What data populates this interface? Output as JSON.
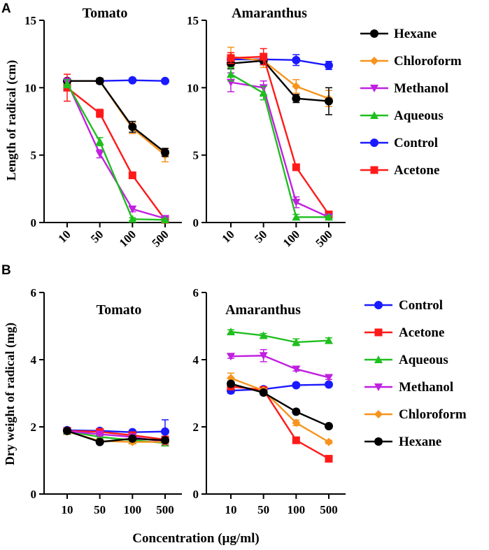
{
  "figure": {
    "panel_a_label": "A",
    "panel_b_label": "B",
    "ylabel_a": "Length of radical (cm)",
    "ylabel_b": "Dry weight of radical (mg)",
    "xlabel": "Concentration (µg/ml)"
  },
  "colors": {
    "Hexane": "#000000",
    "Chloroform": "#f7941d",
    "Methanol": "#c020e0",
    "Aqueous": "#1fbf1f",
    "Control": "#1a1aff",
    "Acetone": "#ff1a1a"
  },
  "legend_a": [
    "Hexane",
    "Chloroform",
    "Methanol",
    "Aqueous",
    "Control",
    "Acetone"
  ],
  "legend_b": [
    "Control",
    "Acetone",
    "Aqueous",
    "Methanol",
    "Chloroform",
    "Hexane"
  ],
  "chart_data": [
    {
      "type": "line",
      "title": "Tomato",
      "panel": "A",
      "categories": [
        "10",
        "50",
        "100",
        "500"
      ],
      "ylabel": "Length of radical (cm)",
      "xlabel": "",
      "ylim": [
        0,
        15
      ],
      "yticks": [
        0,
        5,
        10,
        15
      ],
      "series": [
        {
          "name": "Control",
          "marker": "circle",
          "values": [
            10.5,
            10.5,
            10.55,
            10.5
          ],
          "errors": [
            0.1,
            0.1,
            0.1,
            0.1
          ]
        },
        {
          "name": "Chloroform",
          "marker": "diamond",
          "values": [
            10.5,
            10.5,
            7.0,
            5.0
          ],
          "errors": [
            0.2,
            0.2,
            0.4,
            0.5
          ]
        },
        {
          "name": "Hexane",
          "marker": "circle",
          "values": [
            10.5,
            10.5,
            7.1,
            5.2
          ],
          "errors": [
            0.2,
            0.2,
            0.4,
            0.3
          ]
        },
        {
          "name": "Acetone",
          "marker": "square",
          "values": [
            10.0,
            8.1,
            3.5,
            0.2
          ],
          "errors": [
            1.0,
            0.3,
            0.2,
            0.1
          ]
        },
        {
          "name": "Methanol",
          "marker": "triangle-down",
          "values": [
            10.4,
            5.1,
            1.0,
            0.3
          ],
          "errors": [
            0.3,
            0.3,
            0.2,
            0.1
          ]
        },
        {
          "name": "Aqueous",
          "marker": "triangle-up",
          "values": [
            10.3,
            6.0,
            0.25,
            0.2
          ],
          "errors": [
            0.3,
            0.3,
            0.1,
            0.1
          ]
        }
      ]
    },
    {
      "type": "line",
      "title": "Amaranthus",
      "panel": "A",
      "categories": [
        "10",
        "50",
        "100",
        "500"
      ],
      "ylabel": "",
      "xlabel": "",
      "ylim": [
        0,
        15
      ],
      "yticks": [
        0,
        5,
        10,
        15
      ],
      "series": [
        {
          "name": "Control",
          "marker": "circle",
          "values": [
            12.1,
            12.1,
            12.05,
            11.65
          ],
          "errors": [
            0.3,
            0.3,
            0.4,
            0.3
          ]
        },
        {
          "name": "Chloroform",
          "marker": "diamond",
          "values": [
            12.3,
            12.0,
            10.1,
            9.2
          ],
          "errors": [
            0.7,
            0.5,
            0.5,
            0.6
          ]
        },
        {
          "name": "Hexane",
          "marker": "circle",
          "values": [
            11.8,
            12.0,
            9.2,
            9.0
          ],
          "errors": [
            0.4,
            0.3,
            0.3,
            1.0
          ]
        },
        {
          "name": "Acetone",
          "marker": "square",
          "values": [
            12.2,
            12.3,
            4.1,
            0.6
          ],
          "errors": [
            0.4,
            0.6,
            0.2,
            0.2
          ]
        },
        {
          "name": "Methanol",
          "marker": "triangle-down",
          "values": [
            10.4,
            10.0,
            1.5,
            0.4
          ],
          "errors": [
            0.7,
            0.5,
            0.4,
            0.1
          ]
        },
        {
          "name": "Aqueous",
          "marker": "triangle-up",
          "values": [
            11.0,
            9.6,
            0.4,
            0.4
          ],
          "errors": [
            0.5,
            0.5,
            0.2,
            0.1
          ]
        }
      ]
    },
    {
      "type": "line",
      "title": "Tomato",
      "panel": "B",
      "categories": [
        "10",
        "50",
        "100",
        "500"
      ],
      "ylabel": "Dry weight of radical (mg)",
      "xlabel": "",
      "ylim": [
        0,
        6
      ],
      "yticks": [
        0,
        2,
        4,
        6
      ],
      "series": [
        {
          "name": "Control",
          "marker": "circle",
          "values": [
            1.9,
            1.88,
            1.84,
            1.86
          ],
          "errors": [
            0.05,
            0.05,
            0.06,
            0.35
          ]
        },
        {
          "name": "Acetone",
          "marker": "square",
          "values": [
            1.88,
            1.85,
            1.75,
            1.62
          ],
          "errors": [
            0.05,
            0.05,
            0.06,
            0.1
          ]
        },
        {
          "name": "Aqueous",
          "marker": "triangle-up",
          "values": [
            1.87,
            1.7,
            1.6,
            1.52
          ],
          "errors": [
            0.05,
            0.05,
            0.06,
            0.08
          ]
        },
        {
          "name": "Methanol",
          "marker": "triangle-down",
          "values": [
            1.87,
            1.78,
            1.7,
            1.55
          ],
          "errors": [
            0.05,
            0.05,
            0.06,
            0.08
          ]
        },
        {
          "name": "Chloroform",
          "marker": "diamond",
          "values": [
            1.86,
            1.58,
            1.55,
            1.55
          ],
          "errors": [
            0.05,
            0.05,
            0.06,
            0.06
          ]
        },
        {
          "name": "Hexane",
          "marker": "circle",
          "values": [
            1.88,
            1.55,
            1.65,
            1.6
          ],
          "errors": [
            0.05,
            0.05,
            0.06,
            0.06
          ]
        }
      ]
    },
    {
      "type": "line",
      "title": "Amaranthus",
      "panel": "B",
      "categories": [
        "10",
        "50",
        "100",
        "500"
      ],
      "ylabel": "",
      "xlabel": "Concentration (µg/ml)",
      "ylim": [
        0,
        6
      ],
      "yticks": [
        0,
        2,
        4,
        6
      ],
      "series": [
        {
          "name": "Control",
          "marker": "circle",
          "values": [
            3.08,
            3.12,
            3.24,
            3.26
          ],
          "errors": [
            0.08,
            0.05,
            0.04,
            0.04
          ]
        },
        {
          "name": "Acetone",
          "marker": "square",
          "values": [
            3.2,
            3.1,
            1.6,
            1.05
          ],
          "errors": [
            0.08,
            0.06,
            0.05,
            0.05
          ]
        },
        {
          "name": "Aqueous",
          "marker": "triangle-up",
          "values": [
            4.83,
            4.72,
            4.52,
            4.57
          ],
          "errors": [
            0.06,
            0.06,
            0.1,
            0.08
          ]
        },
        {
          "name": "Methanol",
          "marker": "triangle-down",
          "values": [
            4.1,
            4.12,
            3.72,
            3.47
          ],
          "errors": [
            0.06,
            0.18,
            0.06,
            0.06
          ]
        },
        {
          "name": "Chloroform",
          "marker": "diamond",
          "values": [
            3.45,
            3.08,
            2.12,
            1.55
          ],
          "errors": [
            0.15,
            0.06,
            0.08,
            0.05
          ]
        },
        {
          "name": "Hexane",
          "marker": "circle",
          "values": [
            3.28,
            3.02,
            2.45,
            2.02
          ],
          "errors": [
            0.08,
            0.06,
            0.05,
            0.05
          ]
        }
      ]
    }
  ]
}
